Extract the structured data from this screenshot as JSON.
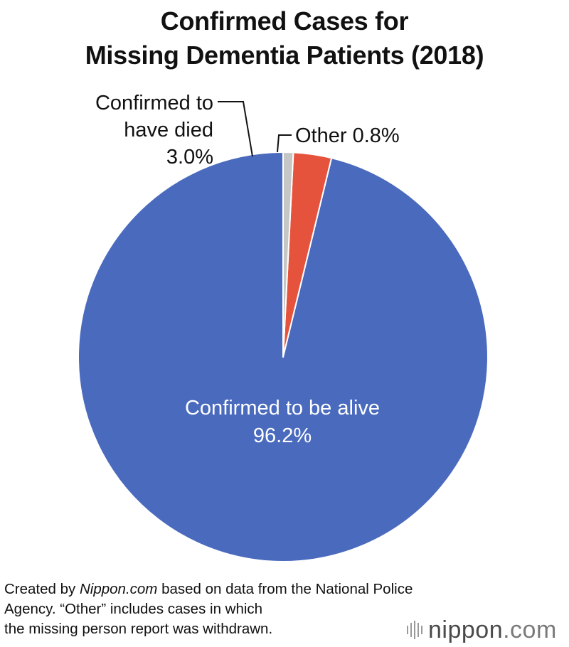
{
  "title": {
    "line1": "Confirmed Cases for",
    "line2": "Missing Dementia Patients (2018)"
  },
  "chart_data": {
    "type": "pie",
    "title": "Confirmed Cases for Missing Dementia Patients (2018)",
    "unit": "%",
    "slices": [
      {
        "label": "Confirmed to be alive",
        "value": 96.2,
        "color": "#4a6abd",
        "value_text": "96.2%"
      },
      {
        "label": "Confirmed to have died",
        "value": 3.0,
        "color": "#e5533d",
        "value_text": "3.0%"
      },
      {
        "label": "Other",
        "value": 0.8,
        "color": "#c6c6c6",
        "value_text": "0.8%"
      }
    ],
    "labels": {
      "alive": {
        "line1": "Confirmed to be alive",
        "line2": "96.2%"
      },
      "died": {
        "line1": "Confirmed to",
        "line2": "have died",
        "line3": "3.0%"
      },
      "other": {
        "line1": "Other 0.8%"
      }
    }
  },
  "footnote": {
    "prefix": "Created by ",
    "site": "Nippon.com",
    "suffix": " based on data from the National Police",
    "line2": "Agency. “Other” includes cases in which",
    "line3": "the missing person report was withdrawn."
  },
  "logo": {
    "text_main": "nippon",
    "text_dot": ".com"
  }
}
